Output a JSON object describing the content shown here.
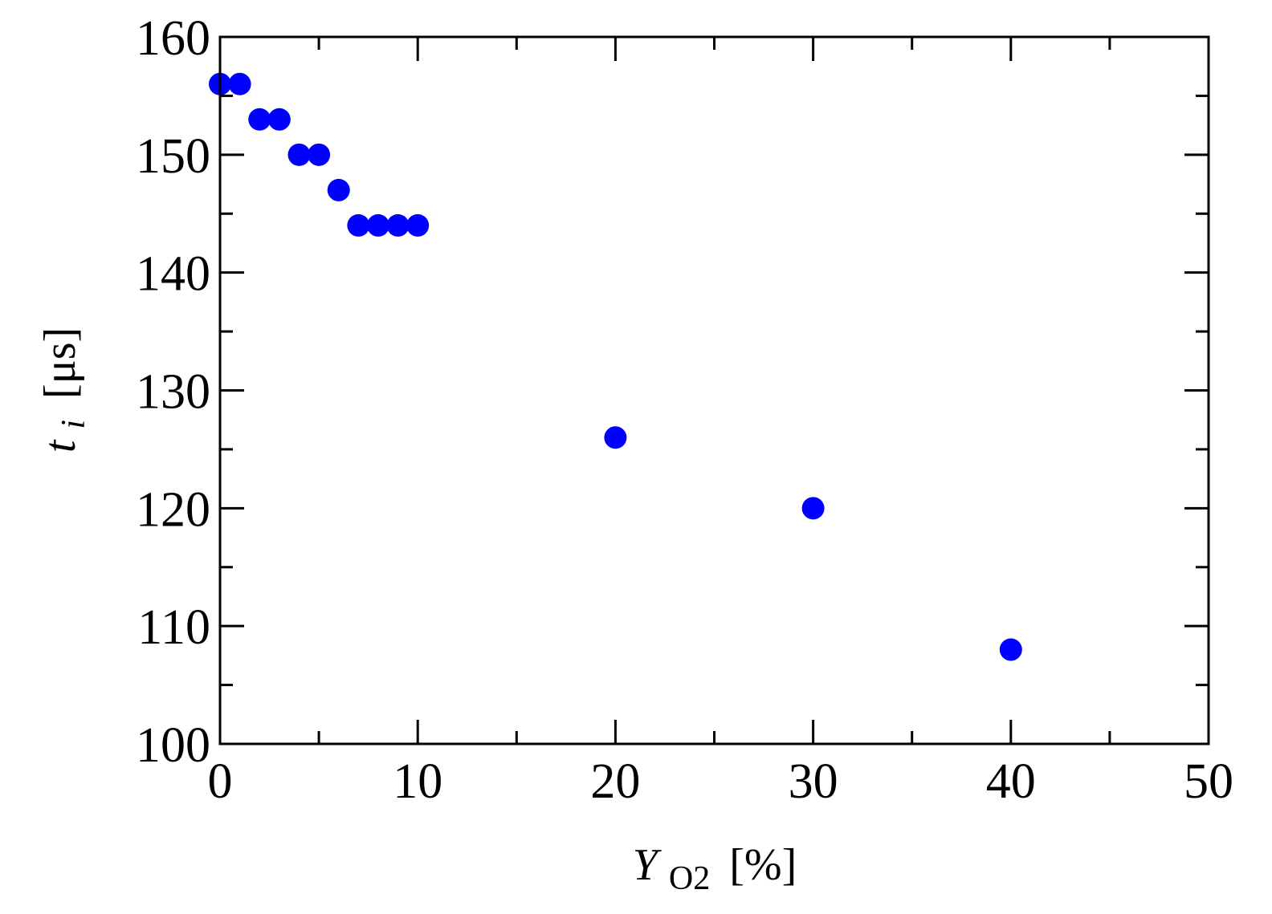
{
  "chart_data": {
    "type": "scatter",
    "title": "",
    "xlabel": {
      "symbol": "Y",
      "subscript": "O2",
      "unit": "[%]"
    },
    "ylabel": {
      "symbol": "t",
      "subscript": "i",
      "unit": "[μs]"
    },
    "xlim": [
      0,
      50
    ],
    "ylim": [
      100,
      160
    ],
    "xticks": [
      0,
      10,
      20,
      30,
      40,
      50
    ],
    "xtick_labels": [
      "0",
      "10",
      "20",
      "30",
      "40",
      "50"
    ],
    "yticks": [
      100,
      110,
      120,
      130,
      140,
      150,
      160
    ],
    "ytick_labels": [
      "100",
      "110",
      "120",
      "130",
      "140",
      "150",
      "160"
    ],
    "x_minor_step": 5,
    "y_minor_step": 5,
    "grid": false,
    "legend": "none",
    "marker_color": "#0000ff",
    "series": [
      {
        "points": [
          {
            "x": 0,
            "y": 156
          },
          {
            "x": 1,
            "y": 156
          },
          {
            "x": 2,
            "y": 153
          },
          {
            "x": 3,
            "y": 153
          },
          {
            "x": 4,
            "y": 150
          },
          {
            "x": 5,
            "y": 150
          },
          {
            "x": 6,
            "y": 147
          },
          {
            "x": 7,
            "y": 144
          },
          {
            "x": 8,
            "y": 144
          },
          {
            "x": 9,
            "y": 144
          },
          {
            "x": 10,
            "y": 144
          },
          {
            "x": 20,
            "y": 126
          },
          {
            "x": 30,
            "y": 120
          },
          {
            "x": 40,
            "y": 108
          }
        ]
      }
    ]
  }
}
